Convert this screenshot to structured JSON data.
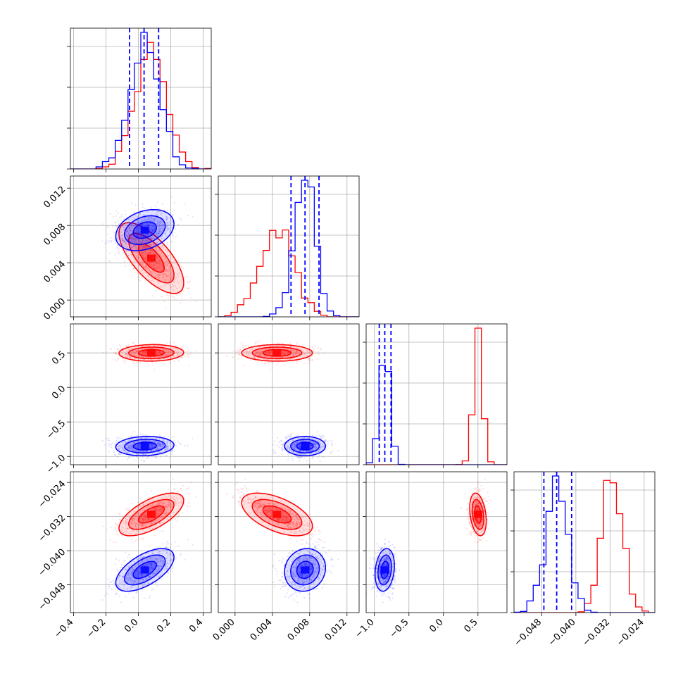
{
  "chart_data": {
    "type": "corner",
    "parameters": 4,
    "grid": true,
    "colors": {
      "red": "#ff0000",
      "blue": "#0000ff"
    },
    "series": [
      {
        "color": "#ff0000",
        "means": [
          0.08,
          0.0045,
          0.5,
          -0.0315
        ],
        "sds": [
          0.1,
          0.0019,
          0.06,
          0.0025
        ],
        "correlations": {
          "1-0": -0.7,
          "3-0": 0.65,
          "3-1": -0.55,
          "2-0": 0.05,
          "2-1": 0.0,
          "3-2": -0.3
        }
      },
      {
        "color": "#0000ff",
        "means": [
          0.04,
          0.0075,
          -0.85,
          -0.0445
        ],
        "sds": [
          0.09,
          0.0011,
          0.07,
          0.0025
        ],
        "correlations": {
          "1-0": 0.3,
          "3-0": 0.6,
          "3-1": 0.1,
          "2-0": 0.1,
          "2-1": 0.0,
          "3-2": 0.2
        }
      }
    ],
    "quantiles_blue": [
      [
        -0.055,
        0.035,
        0.125
      ],
      [
        0.006,
        0.0075,
        0.009
      ],
      [
        -0.93,
        -0.85,
        -0.76
      ],
      [
        -0.0475,
        -0.0445,
        -0.041
      ]
    ],
    "ranges": [
      [
        -0.42,
        0.45
      ],
      [
        -0.0018,
        0.0133
      ],
      [
        -1.12,
        0.92
      ],
      [
        -0.0545,
        -0.0215
      ]
    ],
    "yranges": [
      [
        -0.0018,
        0.0133
      ],
      [
        -1.12,
        0.92
      ],
      [
        -0.0545,
        -0.0215
      ]
    ],
    "xticks": [
      {
        "values": [
          -0.4,
          -0.2,
          0.0,
          0.2,
          0.4
        ],
        "labels": [
          "−0.4",
          "−0.2",
          "0.0",
          "0.2",
          "0.4"
        ]
      },
      {
        "values": [
          0.0,
          0.004,
          0.008,
          0.012
        ],
        "labels": [
          "0.000",
          "0.004",
          "0.008",
          "0.012"
        ]
      },
      {
        "values": [
          -1.0,
          -0.5,
          0.0,
          0.5
        ],
        "labels": [
          "−1.0",
          "−0.5",
          "0.0",
          "0.5"
        ]
      },
      {
        "values": [
          -0.048,
          -0.04,
          -0.032,
          -0.024
        ],
        "labels": [
          "−0.048",
          "−0.040",
          "−0.032",
          "−0.024"
        ]
      }
    ],
    "yticks": [
      {
        "values": [
          0.0,
          0.004,
          0.008,
          0.012
        ],
        "labels": [
          "0.000",
          "0.004",
          "0.008",
          "0.012"
        ]
      },
      {
        "values": [
          -1.0,
          -0.5,
          0.0,
          0.5
        ],
        "labels": [
          "−1.0",
          "−0.5",
          "0.0",
          "0.5"
        ]
      },
      {
        "values": [
          -0.048,
          -0.04,
          -0.032,
          -0.024
        ],
        "labels": [
          "−0.048",
          "−0.040",
          "−0.032",
          "−0.024"
        ]
      }
    ]
  }
}
